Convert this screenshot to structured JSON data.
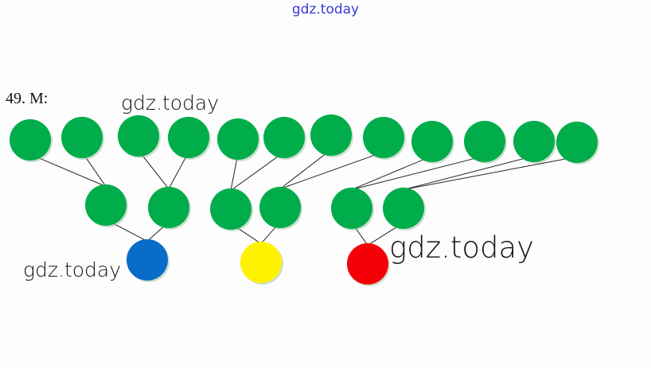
{
  "header": {
    "watermark": "gdz.today"
  },
  "problem_label": "49. M:",
  "watermarks": [
    "gdz.today",
    "gdz.today",
    "gdz.today"
  ],
  "colors": {
    "green": "#00ad4a",
    "blue": "#0a6cc9",
    "yellow": "#fff200",
    "red": "#f50009",
    "line": "#222222",
    "watermark_top": "#3a3ad8"
  },
  "diagram": {
    "levels": [
      {
        "count": 12,
        "color": "green"
      },
      {
        "count": 6,
        "color": "green"
      },
      {
        "count": 3,
        "colors": [
          "blue",
          "yellow",
          "red"
        ]
      }
    ],
    "each_node_has_two_parents": true
  }
}
